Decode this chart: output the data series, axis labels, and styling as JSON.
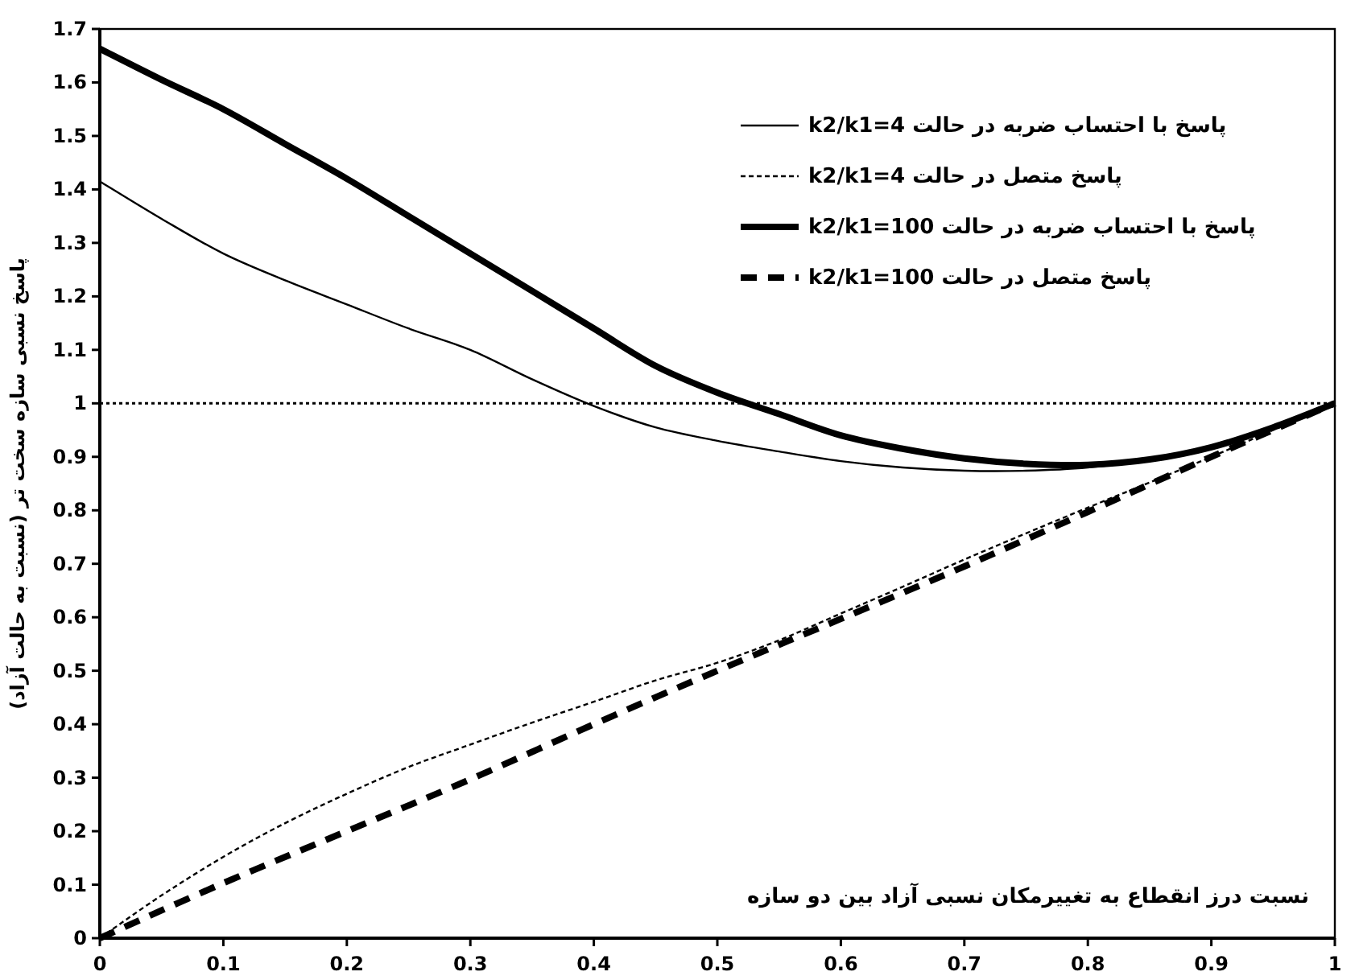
{
  "chart_data": {
    "type": "line",
    "xlabel": "نسبت درز انقطاع به تغییرمکان نسبی آزاد بین دو سازه",
    "ylabel": "پاسخ نسبی سازه سخت تر (نسبت به حالت آزاد)",
    "xlim": [
      0,
      1
    ],
    "xticks": [
      0,
      0.1,
      0.2,
      0.3,
      0.4,
      0.5,
      0.6,
      0.7,
      0.8,
      0.9,
      1
    ],
    "ylim": [
      0,
      1.7
    ],
    "yticks": [
      0,
      0.1,
      0.2,
      0.3,
      0.4,
      0.5,
      0.6,
      0.7,
      0.8,
      0.9,
      1,
      1.1,
      1.2,
      1.3,
      1.4,
      1.5,
      1.6,
      1.7
    ],
    "grid": false,
    "legend": "top right",
    "marker": "none",
    "ref_lines": [
      {
        "axis": "y",
        "value": 1,
        "color": "#000000",
        "line_style": "dotted"
      }
    ],
    "series": [
      {
        "name": "پاسخ با احتساب ضربه در حالت k2/k1=4",
        "color": "#000000",
        "line_style": "solid",
        "x": [
          0,
          0.05,
          0.1,
          0.15,
          0.2,
          0.25,
          0.3,
          0.35,
          0.4,
          0.45,
          0.5,
          0.55,
          0.6,
          0.65,
          0.7,
          0.75,
          0.8,
          0.85,
          0.9,
          0.95,
          1
        ],
        "values": [
          1.415,
          1.345,
          1.28,
          1.23,
          1.185,
          1.14,
          1.1,
          1.045,
          0.995,
          0.955,
          0.93,
          0.91,
          0.892,
          0.88,
          0.874,
          0.874,
          0.88,
          0.895,
          0.92,
          0.955,
          1.0
        ]
      },
      {
        "name": "پاسخ متصل در حالت k2/k1=4",
        "color": "#000000",
        "line_style": "dotted",
        "x": [
          0,
          0.05,
          0.1,
          0.15,
          0.2,
          0.25,
          0.3,
          0.35,
          0.4,
          0.45,
          0.5,
          0.55,
          0.6,
          0.65,
          0.7,
          0.75,
          0.8,
          0.85,
          0.9,
          0.95,
          1
        ],
        "values": [
          0,
          0.08,
          0.152,
          0.215,
          0.27,
          0.32,
          0.362,
          0.403,
          0.442,
          0.482,
          0.515,
          0.557,
          0.607,
          0.657,
          0.708,
          0.757,
          0.805,
          0.852,
          0.9,
          0.95,
          1.0
        ]
      },
      {
        "name": "پاسخ با احتساب ضربه در حالت k2/k1=100",
        "color": "#000000",
        "line_style": "solid",
        "x": [
          0,
          0.05,
          0.1,
          0.15,
          0.2,
          0.25,
          0.3,
          0.35,
          0.4,
          0.45,
          0.5,
          0.55,
          0.6,
          0.65,
          0.7,
          0.75,
          0.8,
          0.85,
          0.9,
          0.95,
          1
        ],
        "values": [
          1.663,
          1.605,
          1.55,
          1.485,
          1.42,
          1.35,
          1.28,
          1.21,
          1.14,
          1.07,
          1.02,
          0.98,
          0.94,
          0.915,
          0.897,
          0.887,
          0.885,
          0.895,
          0.918,
          0.955,
          1.0
        ]
      },
      {
        "name": "پاسخ متصل در حالت k2/k1=100",
        "color": "#000000",
        "line_style": "dashed",
        "x": [
          0,
          0.1,
          0.2,
          0.3,
          0.4,
          0.5,
          0.6,
          0.7,
          0.8,
          0.9,
          1
        ],
        "values": [
          0,
          0.103,
          0.2,
          0.297,
          0.4,
          0.5,
          0.597,
          0.695,
          0.797,
          0.9,
          1.0
        ]
      }
    ]
  }
}
